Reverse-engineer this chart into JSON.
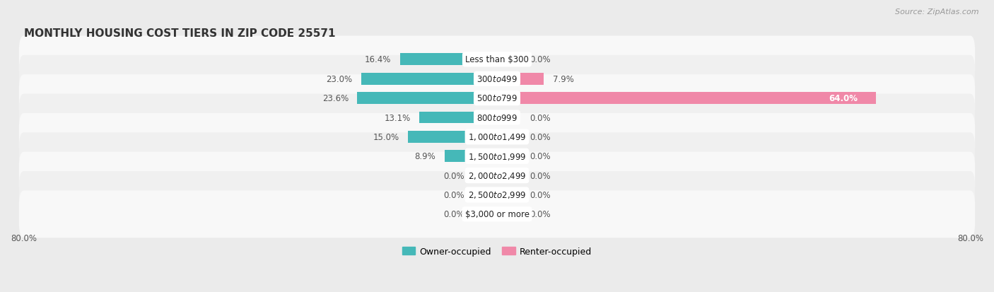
{
  "title": "MONTHLY HOUSING COST TIERS IN ZIP CODE 25571",
  "source": "Source: ZipAtlas.com",
  "categories": [
    "Less than $300",
    "$300 to $499",
    "$500 to $799",
    "$800 to $999",
    "$1,000 to $1,499",
    "$1,500 to $1,999",
    "$2,000 to $2,499",
    "$2,500 to $2,999",
    "$3,000 or more"
  ],
  "owner_values": [
    16.4,
    23.0,
    23.6,
    13.1,
    15.0,
    8.9,
    0.0,
    0.0,
    0.0
  ],
  "renter_values": [
    0.0,
    7.9,
    64.0,
    0.0,
    0.0,
    0.0,
    0.0,
    0.0,
    0.0
  ],
  "owner_color": "#45b8b8",
  "renter_color": "#f088a8",
  "owner_color_zero": "#90d0d0",
  "renter_color_zero": "#f5c0d0",
  "axis_limit": 80.0,
  "zero_stub": 4.0,
  "background_color": "#ebebeb",
  "row_bg_color": "#f8f8f8",
  "row_bg_color_alt": "#f0f0f0",
  "label_color_inside": "#ffffff",
  "label_color_outside": "#555555",
  "title_fontsize": 11,
  "source_fontsize": 8,
  "bar_label_fontsize": 8.5,
  "category_fontsize": 8.5,
  "axis_label_fontsize": 8.5,
  "legend_fontsize": 9,
  "bar_height": 0.62
}
